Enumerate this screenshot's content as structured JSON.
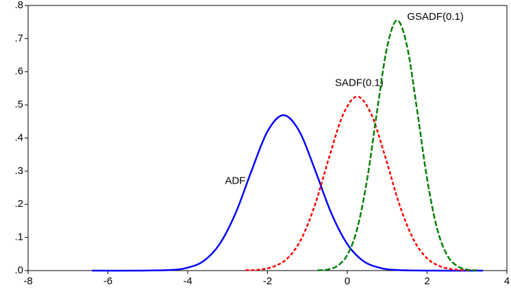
{
  "chart_data": {
    "type": "line",
    "xlim": [
      -8,
      4
    ],
    "xticks": [
      -8,
      -6,
      -4,
      -2,
      0,
      2,
      4
    ],
    "ylim": [
      0,
      0.8
    ],
    "yticks": [
      {
        "value": 0,
        "label": ".0"
      },
      {
        "value": 0.1,
        "label": ".1"
      },
      {
        "value": 0.2,
        "label": ".2"
      },
      {
        "value": 0.3,
        "label": ".3"
      },
      {
        "value": 0.4,
        "label": ".4"
      },
      {
        "value": 0.5,
        "label": ".5"
      },
      {
        "value": 0.6,
        "label": ".6"
      },
      {
        "value": 0.7,
        "label": ".7"
      },
      {
        "value": 0.8,
        "label": ".8"
      }
    ],
    "grid": false,
    "series": [
      {
        "name": "ADF",
        "color": "#0000ff",
        "line_style": "solid",
        "x": [
          -6.4,
          -5.2,
          -4.4,
          -4.0,
          -3.6,
          -3.2,
          -2.8,
          -2.4,
          -2.0,
          -1.6,
          -1.2,
          -0.8,
          -0.4,
          0,
          0.4,
          0.8,
          1.2,
          2.0,
          3.4
        ],
        "values": [
          0,
          0,
          0.002,
          0.009,
          0.029,
          0.08,
          0.173,
          0.301,
          0.42,
          0.469,
          0.42,
          0.301,
          0.173,
          0.08,
          0.029,
          0.009,
          0.002,
          0,
          0
        ]
      },
      {
        "name": "SADF(0.1)",
        "color": "#ff0000",
        "line_style": "dotted",
        "x": [
          -2.55,
          -2.2,
          -1.85,
          -1.5,
          -1.15,
          -0.8,
          -0.45,
          -0.1,
          0.25,
          0.6,
          0.95,
          1.3,
          1.65,
          2.0,
          2.35,
          2.7,
          3.05
        ],
        "values": [
          0.001,
          0.003,
          0.012,
          0.037,
          0.096,
          0.202,
          0.344,
          0.472,
          0.525,
          0.472,
          0.344,
          0.202,
          0.096,
          0.037,
          0.012,
          0.003,
          0.001
        ]
      },
      {
        "name": "GSADF(0.1)",
        "color": "#008000",
        "line_style": "dashed",
        "x": [
          -0.75,
          -0.5,
          -0.25,
          0,
          0.25,
          0.5,
          0.75,
          1.0,
          1.25,
          1.5,
          1.75,
          2.0,
          2.25,
          2.5,
          2.75,
          3.0,
          3.25
        ],
        "values": [
          0.001,
          0.003,
          0.014,
          0.047,
          0.127,
          0.277,
          0.484,
          0.676,
          0.755,
          0.676,
          0.484,
          0.277,
          0.127,
          0.047,
          0.014,
          0.003,
          0.001
        ]
      }
    ]
  }
}
